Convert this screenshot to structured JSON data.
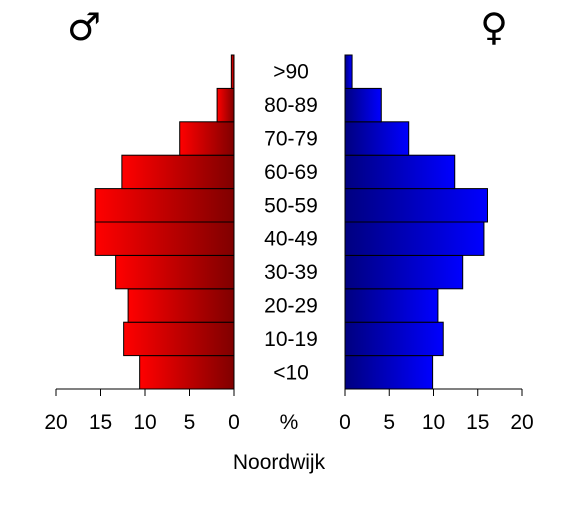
{
  "chart_data": {
    "type": "bar",
    "orientation": "horizontal-pyramid",
    "title": "Noordwijk",
    "male_symbol": "♂",
    "female_symbol": "♀",
    "center_unit": "%",
    "categories": [
      "<10",
      "10-19",
      "20-29",
      "30-39",
      "40-49",
      "50-59",
      "60-69",
      "70-79",
      "80-89",
      ">90"
    ],
    "series": [
      {
        "name": "♂",
        "side": "left",
        "color": "#ff0000",
        "color_dark": "#800000",
        "values": [
          10.6,
          12.4,
          11.9,
          13.3,
          15.6,
          15.6,
          12.6,
          6.1,
          1.9,
          0.3
        ]
      },
      {
        "name": "♀",
        "side": "right",
        "color": "#0000ff",
        "color_dark": "#000080",
        "values": [
          9.9,
          11.1,
          10.5,
          13.3,
          15.7,
          16.1,
          12.4,
          7.2,
          4.1,
          0.8
        ]
      }
    ],
    "xlim": [
      0,
      20
    ],
    "left_tick_labels": [
      "20",
      "15",
      "10",
      "5",
      "0"
    ],
    "right_tick_labels": [
      "0",
      "5",
      "10",
      "15",
      "20"
    ],
    "grid": false,
    "legend": "none"
  }
}
